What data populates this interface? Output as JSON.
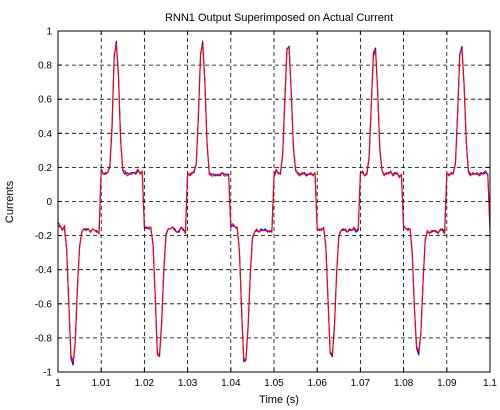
{
  "chart_data": {
    "type": "line",
    "title": "RNN1 Output Superimposed on Actual Current",
    "xlabel": "Time (s)",
    "ylabel": "Currents",
    "xlim": [
      1,
      1.1
    ],
    "ylim": [
      -1,
      1
    ],
    "grid": true,
    "grid_style": "dashed",
    "x_ticks": [
      1,
      1.01,
      1.02,
      1.03,
      1.04,
      1.05,
      1.06,
      1.07,
      1.08,
      1.09,
      1.1
    ],
    "x_tick_labels": [
      "1",
      "1.01",
      "1.02",
      "1.03",
      "1.04",
      "1.05",
      "1.06",
      "1.07",
      "1.08",
      "1.09",
      "1.1"
    ],
    "y_ticks": [
      -1,
      -0.8,
      -0.6,
      -0.4,
      -0.2,
      0,
      0.2,
      0.4,
      0.6,
      0.8,
      1
    ],
    "y_tick_labels": [
      "-1",
      "-0.8",
      "-0.6",
      "-0.4",
      "-0.2",
      "0",
      "0.2",
      "0.4",
      "0.6",
      "0.8",
      "1"
    ],
    "series": [
      {
        "color": "#0000ff",
        "x": [
          1.0,
          1.0005,
          1.001,
          1.0015,
          1.002,
          1.0025,
          1.003,
          1.0035,
          1.004,
          1.0045,
          1.005,
          1.0055,
          1.006,
          1.0065,
          1.007,
          1.0075,
          1.008,
          1.0085,
          1.009,
          1.0095,
          1.01,
          1.0105,
          1.011,
          1.0115,
          1.012,
          1.0125,
          1.013,
          1.0135,
          1.014,
          1.0145,
          1.015,
          1.0155,
          1.016,
          1.0165,
          1.017,
          1.0175,
          1.018,
          1.0185,
          1.019,
          1.0195,
          1.02,
          1.0205,
          1.021,
          1.0215,
          1.022,
          1.0225,
          1.023,
          1.0235,
          1.024,
          1.0245,
          1.025,
          1.0255,
          1.026,
          1.0265,
          1.027,
          1.0275,
          1.028,
          1.0285,
          1.029,
          1.0295,
          1.03,
          1.0305,
          1.031,
          1.0315,
          1.032,
          1.0325,
          1.033,
          1.0335,
          1.034,
          1.0345,
          1.035,
          1.0355,
          1.036,
          1.0365,
          1.037,
          1.0375,
          1.038,
          1.0385,
          1.039,
          1.0395,
          1.04,
          1.0405,
          1.041,
          1.0415,
          1.042,
          1.0425,
          1.043,
          1.0435,
          1.044,
          1.0445,
          1.045,
          1.0455,
          1.046,
          1.0465,
          1.047,
          1.0475,
          1.048,
          1.0485,
          1.049,
          1.0495,
          1.05,
          1.0505,
          1.051,
          1.0515,
          1.052,
          1.0525,
          1.053,
          1.0535,
          1.054,
          1.0545,
          1.055,
          1.0555,
          1.056,
          1.0565,
          1.057,
          1.0575,
          1.058,
          1.0585,
          1.059,
          1.0595,
          1.06,
          1.0605,
          1.061,
          1.0615,
          1.062,
          1.0625,
          1.063,
          1.0635,
          1.064,
          1.0645,
          1.065,
          1.0655,
          1.066,
          1.0665,
          1.067,
          1.0675,
          1.068,
          1.0685,
          1.069,
          1.0695,
          1.07,
          1.0705,
          1.071,
          1.0715,
          1.072,
          1.0725,
          1.073,
          1.0735,
          1.074,
          1.0745,
          1.075,
          1.0755,
          1.076,
          1.0765,
          1.077,
          1.0775,
          1.078,
          1.0785,
          1.079,
          1.0795,
          1.08,
          1.0805,
          1.081,
          1.0815,
          1.082,
          1.0825,
          1.083,
          1.0835,
          1.084,
          1.0845,
          1.085,
          1.0855,
          1.086,
          1.0865,
          1.087,
          1.0875,
          1.088,
          1.0885,
          1.089,
          1.0895,
          1.09,
          1.0905,
          1.091,
          1.0915,
          1.092,
          1.0925,
          1.093,
          1.0935,
          1.094,
          1.0945,
          1.095,
          1.0955,
          1.096,
          1.0965,
          1.097,
          1.0975,
          1.098,
          1.0985,
          1.099,
          1.0995,
          1.1
        ],
        "y": [
          -0.14,
          -0.15,
          -0.16,
          -0.16,
          -0.28,
          -0.6,
          -0.92,
          -0.96,
          -0.82,
          -0.5,
          -0.26,
          -0.18,
          -0.16,
          -0.17,
          -0.16,
          -0.18,
          -0.16,
          -0.17,
          -0.18,
          -0.18,
          0.19,
          0.16,
          0.16,
          0.17,
          0.2,
          0.42,
          0.84,
          0.94,
          0.73,
          0.36,
          0.18,
          0.16,
          0.17,
          0.16,
          0.17,
          0.17,
          0.16,
          0.18,
          0.17,
          0.17,
          -0.16,
          -0.15,
          -0.16,
          -0.16,
          -0.25,
          -0.55,
          -0.89,
          -0.9,
          -0.7,
          -0.4,
          -0.2,
          -0.16,
          -0.16,
          -0.15,
          -0.16,
          -0.18,
          -0.18,
          -0.15,
          -0.17,
          -0.17,
          0.16,
          0.16,
          0.17,
          0.17,
          0.22,
          0.5,
          0.86,
          0.94,
          0.7,
          0.34,
          0.17,
          0.16,
          0.16,
          0.15,
          0.16,
          0.15,
          0.17,
          0.16,
          0.16,
          0.16,
          -0.15,
          -0.14,
          -0.15,
          -0.16,
          -0.29,
          -0.64,
          -0.94,
          -0.93,
          -0.74,
          -0.44,
          -0.22,
          -0.18,
          -0.17,
          -0.18,
          -0.16,
          -0.17,
          -0.16,
          -0.18,
          -0.17,
          -0.18,
          0.14,
          0.18,
          0.17,
          0.16,
          0.27,
          0.58,
          0.89,
          0.91,
          0.63,
          0.31,
          0.18,
          0.17,
          0.16,
          0.16,
          0.17,
          0.15,
          0.16,
          0.16,
          0.16,
          0.16,
          -0.16,
          -0.17,
          -0.16,
          -0.16,
          -0.26,
          -0.57,
          -0.89,
          -0.91,
          -0.73,
          -0.42,
          -0.21,
          -0.17,
          -0.16,
          -0.17,
          -0.18,
          -0.16,
          -0.17,
          -0.16,
          -0.18,
          -0.17,
          0.17,
          0.17,
          0.15,
          0.16,
          0.25,
          0.55,
          0.87,
          0.9,
          0.64,
          0.31,
          0.18,
          0.16,
          0.16,
          0.17,
          0.17,
          0.16,
          0.17,
          0.16,
          0.15,
          0.15,
          -0.15,
          -0.16,
          -0.16,
          -0.16,
          -0.3,
          -0.62,
          -0.86,
          -0.9,
          -0.77,
          -0.48,
          -0.22,
          -0.18,
          -0.18,
          -0.18,
          -0.17,
          -0.18,
          -0.18,
          -0.17,
          -0.16,
          -0.18,
          0.16,
          0.16,
          0.16,
          0.17,
          0.22,
          0.51,
          0.86,
          0.91,
          0.68,
          0.35,
          0.18,
          0.16,
          0.16,
          0.16,
          0.16,
          0.16,
          0.17,
          0.16,
          0.17,
          0.16,
          -0.16
        ]
      },
      {
        "color": "#ff0000",
        "x": [
          1.0,
          1.0005,
          1.001,
          1.0015,
          1.002,
          1.0025,
          1.003,
          1.0035,
          1.004,
          1.0045,
          1.005,
          1.0055,
          1.006,
          1.0065,
          1.007,
          1.0075,
          1.008,
          1.0085,
          1.009,
          1.0095,
          1.01,
          1.0105,
          1.011,
          1.0115,
          1.012,
          1.0125,
          1.013,
          1.0135,
          1.014,
          1.0145,
          1.015,
          1.0155,
          1.016,
          1.0165,
          1.017,
          1.0175,
          1.018,
          1.0185,
          1.019,
          1.0195,
          1.02,
          1.0205,
          1.021,
          1.0215,
          1.022,
          1.0225,
          1.023,
          1.0235,
          1.024,
          1.0245,
          1.025,
          1.0255,
          1.026,
          1.0265,
          1.027,
          1.0275,
          1.028,
          1.0285,
          1.029,
          1.0295,
          1.03,
          1.0305,
          1.031,
          1.0315,
          1.032,
          1.0325,
          1.033,
          1.0335,
          1.034,
          1.0345,
          1.035,
          1.0355,
          1.036,
          1.0365,
          1.037,
          1.0375,
          1.038,
          1.0385,
          1.039,
          1.0395,
          1.04,
          1.0405,
          1.041,
          1.0415,
          1.042,
          1.0425,
          1.043,
          1.0435,
          1.044,
          1.0445,
          1.045,
          1.0455,
          1.046,
          1.0465,
          1.047,
          1.0475,
          1.048,
          1.0485,
          1.049,
          1.0495,
          1.05,
          1.0505,
          1.051,
          1.0515,
          1.052,
          1.0525,
          1.053,
          1.0535,
          1.054,
          1.0545,
          1.055,
          1.0555,
          1.056,
          1.0565,
          1.057,
          1.0575,
          1.058,
          1.0585,
          1.059,
          1.0595,
          1.06,
          1.0605,
          1.061,
          1.0615,
          1.062,
          1.0625,
          1.063,
          1.0635,
          1.064,
          1.0645,
          1.065,
          1.0655,
          1.066,
          1.0665,
          1.067,
          1.0675,
          1.068,
          1.0685,
          1.069,
          1.0695,
          1.07,
          1.0705,
          1.071,
          1.0715,
          1.072,
          1.0725,
          1.073,
          1.0735,
          1.074,
          1.0745,
          1.075,
          1.0755,
          1.076,
          1.0765,
          1.077,
          1.0775,
          1.078,
          1.0785,
          1.079,
          1.0795,
          1.08,
          1.0805,
          1.081,
          1.0815,
          1.082,
          1.0825,
          1.083,
          1.0835,
          1.084,
          1.0845,
          1.085,
          1.0855,
          1.086,
          1.0865,
          1.087,
          1.0875,
          1.088,
          1.0885,
          1.089,
          1.0895,
          1.09,
          1.0905,
          1.091,
          1.0915,
          1.092,
          1.0925,
          1.093,
          1.0935,
          1.094,
          1.0945,
          1.095,
          1.0955,
          1.096,
          1.0965,
          1.097,
          1.0975,
          1.098,
          1.0985,
          1.099,
          1.0995,
          1.1
        ],
        "y": [
          -0.12,
          -0.14,
          -0.17,
          -0.14,
          -0.28,
          -0.6,
          -0.9,
          -0.94,
          -0.82,
          -0.5,
          -0.27,
          -0.18,
          -0.16,
          -0.16,
          -0.16,
          -0.18,
          -0.16,
          -0.17,
          -0.17,
          -0.19,
          0.18,
          0.16,
          0.17,
          0.17,
          0.21,
          0.45,
          0.86,
          0.92,
          0.75,
          0.36,
          0.18,
          0.18,
          0.15,
          0.16,
          0.16,
          0.17,
          0.17,
          0.19,
          0.16,
          0.18,
          -0.14,
          -0.16,
          -0.15,
          -0.15,
          -0.26,
          -0.56,
          -0.9,
          -0.91,
          -0.72,
          -0.4,
          -0.19,
          -0.16,
          -0.16,
          -0.15,
          -0.17,
          -0.18,
          -0.17,
          -0.15,
          -0.16,
          -0.19,
          0.17,
          0.15,
          0.16,
          0.18,
          0.22,
          0.51,
          0.87,
          0.92,
          0.69,
          0.35,
          0.16,
          0.15,
          0.15,
          0.16,
          0.15,
          0.16,
          0.17,
          0.15,
          0.15,
          0.16,
          -0.14,
          -0.13,
          -0.15,
          -0.15,
          -0.3,
          -0.63,
          -0.93,
          -0.92,
          -0.73,
          -0.43,
          -0.21,
          -0.18,
          -0.16,
          -0.18,
          -0.17,
          -0.17,
          -0.17,
          -0.17,
          -0.18,
          -0.17,
          0.15,
          0.19,
          0.16,
          0.17,
          0.28,
          0.6,
          0.9,
          0.9,
          0.64,
          0.32,
          0.19,
          0.16,
          0.15,
          0.17,
          0.16,
          0.16,
          0.16,
          0.17,
          0.15,
          0.17,
          -0.17,
          -0.16,
          -0.17,
          -0.15,
          -0.27,
          -0.58,
          -0.88,
          -0.9,
          -0.72,
          -0.42,
          -0.2,
          -0.17,
          -0.17,
          -0.16,
          -0.18,
          -0.17,
          -0.17,
          -0.15,
          -0.17,
          -0.16,
          0.16,
          0.18,
          0.15,
          0.17,
          0.26,
          0.56,
          0.85,
          0.89,
          0.65,
          0.3,
          0.18,
          0.15,
          0.17,
          0.16,
          0.18,
          0.15,
          0.16,
          0.17,
          0.14,
          0.16,
          -0.14,
          -0.16,
          -0.17,
          -0.16,
          -0.31,
          -0.63,
          -0.85,
          -0.88,
          -0.77,
          -0.47,
          -0.23,
          -0.17,
          -0.19,
          -0.17,
          -0.17,
          -0.17,
          -0.19,
          -0.16,
          -0.17,
          -0.19,
          0.17,
          0.15,
          0.17,
          0.16,
          0.23,
          0.52,
          0.87,
          0.89,
          0.69,
          0.36,
          0.17,
          0.15,
          0.17,
          0.16,
          0.17,
          0.15,
          0.16,
          0.17,
          0.18,
          0.15,
          -0.17
        ]
      }
    ]
  }
}
